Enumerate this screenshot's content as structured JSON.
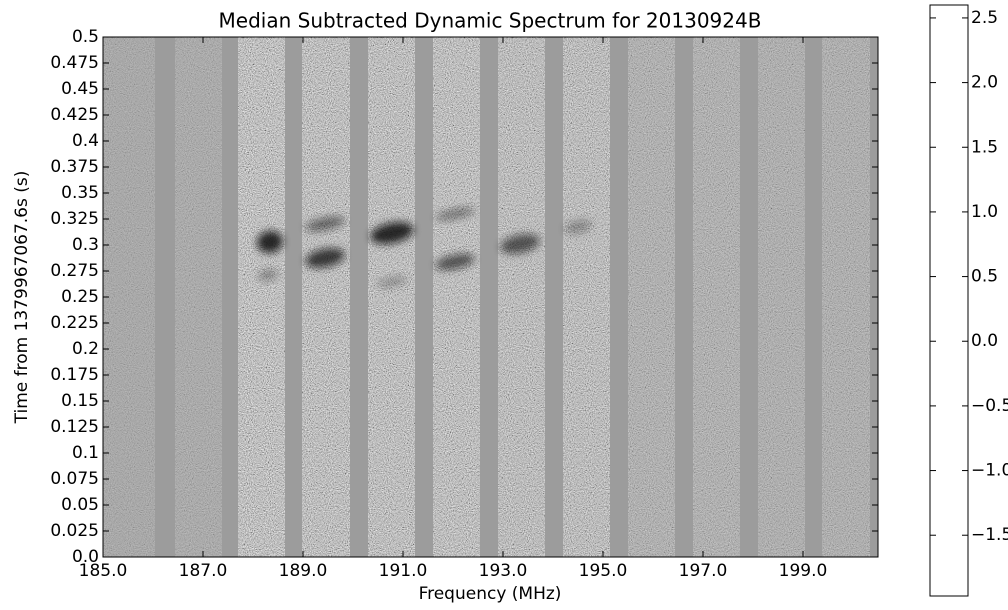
{
  "chart_data": {
    "type": "spectrogram",
    "title": "Median Subtracted Dynamic Spectrum for 20130924B",
    "xlabel": "Frequency (MHz)",
    "ylabel": "Time from 1379967067.6s (s)",
    "xlim": [
      185,
      200.5
    ],
    "xticks": [
      {
        "value": 185,
        "label": "185.0"
      },
      {
        "value": 187,
        "label": "187.0"
      },
      {
        "value": 189,
        "label": "189.0"
      },
      {
        "value": 191,
        "label": "191.0"
      },
      {
        "value": 193,
        "label": "193.0"
      },
      {
        "value": 195,
        "label": "195.0"
      },
      {
        "value": 197,
        "label": "197.0"
      },
      {
        "value": 199,
        "label": "199.0"
      }
    ],
    "ylim": [
      0,
      0.5
    ],
    "yticks": [
      {
        "value": 0,
        "label": "0.0"
      },
      0.025,
      0.05,
      0.075,
      0.1,
      0.125,
      0.15,
      0.175,
      0.2,
      0.225,
      0.25,
      0.275,
      0.3,
      0.325,
      0.35,
      0.375,
      0.4,
      0.425,
      0.45,
      0.475,
      0.5
    ],
    "colorbar": {
      "lim": [
        -1.97,
        2.6
      ],
      "ticks": [
        {
          "value": -1.5,
          "label": "−1.5"
        },
        {
          "value": -1,
          "label": "−1.0"
        },
        {
          "value": -0.5,
          "label": "−0.5"
        },
        {
          "value": 0,
          "label": "0.0"
        },
        0.5,
        {
          "value": 1,
          "label": "1.0"
        },
        1.5,
        {
          "value": 2,
          "label": "2.0"
        },
        2.5
      ],
      "cmap": [
        "#ffffff",
        "#000000"
      ]
    }
  }
}
